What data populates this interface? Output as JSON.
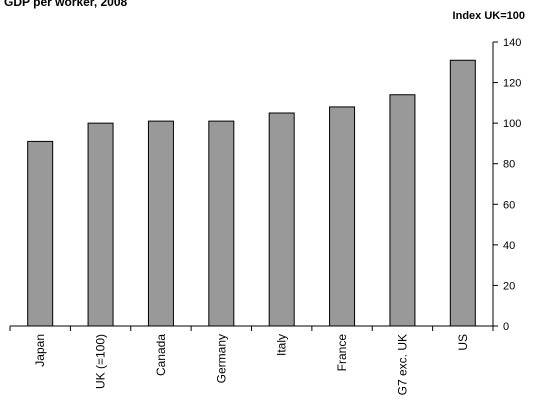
{
  "chart_data": {
    "type": "bar",
    "title": "GDP per worker, 2008",
    "unit_label": "Index UK=100",
    "categories": [
      "Japan",
      "UK (=100)",
      "Canada",
      "Germany",
      "Italy",
      "France",
      "G7 exc. UK",
      "US"
    ],
    "values": [
      91,
      100,
      101,
      101,
      105,
      108,
      114,
      131
    ],
    "ylim": [
      0,
      140
    ],
    "yticks": [
      0,
      20,
      40,
      60,
      80,
      100,
      120,
      140
    ],
    "y_axis_side": "right",
    "grid": false,
    "bar_color": "#999999",
    "legend": "none"
  }
}
